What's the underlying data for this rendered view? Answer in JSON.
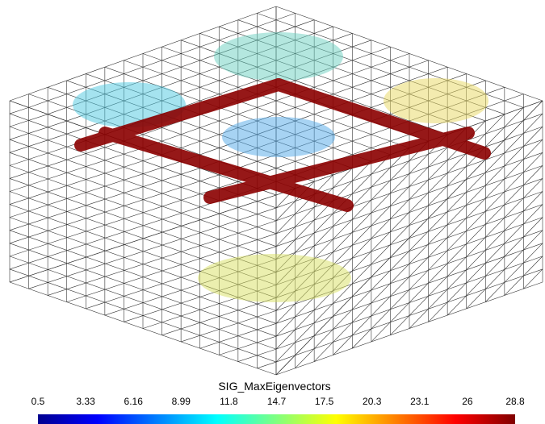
{
  "colorbar": {
    "title": "SIG_MaxEigenvectors",
    "ticks": [
      0.5,
      3.33,
      6.16,
      8.99,
      11.8,
      14.7,
      17.5,
      20.3,
      23.1,
      26,
      28.8
    ]
  }
}
